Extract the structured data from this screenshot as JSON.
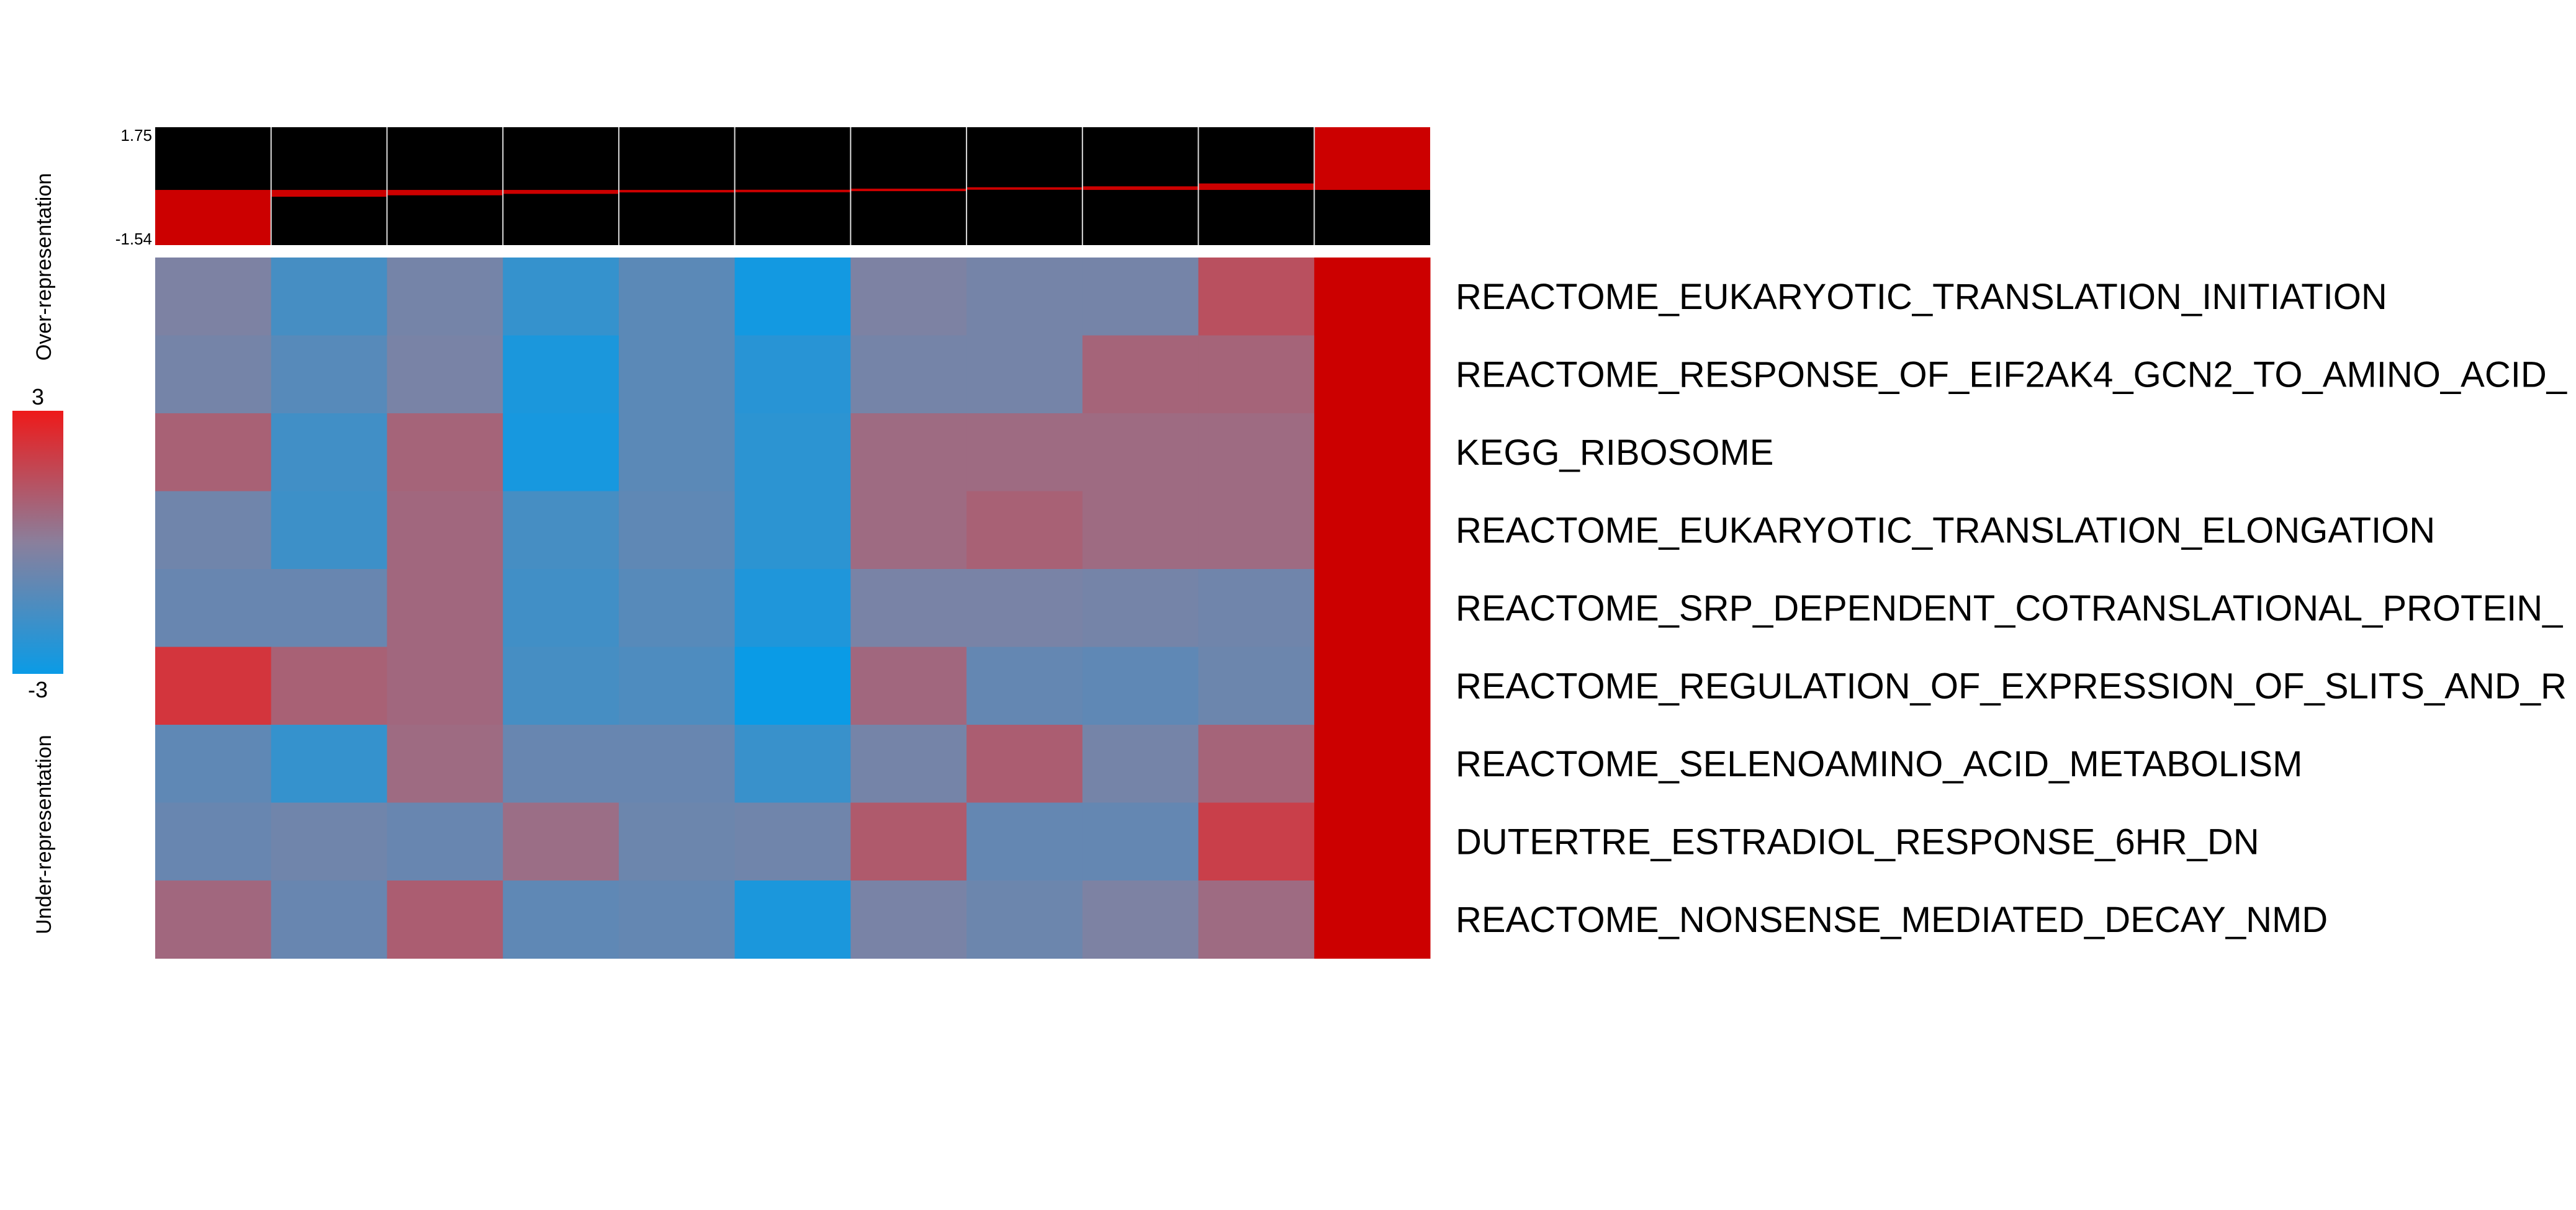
{
  "chart_data": {
    "type": "heatmap",
    "title": "",
    "top_bar": {
      "ymax_label": "1.75",
      "ymin_label": "-1.54",
      "ylim": [
        -1.54,
        1.75
      ],
      "values": [
        -1.54,
        -0.19,
        -0.15,
        -0.11,
        -0.07,
        -0.03,
        0.0,
        0.04,
        0.1,
        0.18,
        1.75
      ],
      "background_color": "#000000",
      "bar_color": "#cc0000"
    },
    "color_scale": {
      "max_label": "3",
      "min_label": "-3",
      "range": [
        -3,
        3
      ],
      "low_color": "#0a9be6",
      "mid_color": "#8a7f9c",
      "high_color": "#ee1a1a",
      "over_label": "Over-representation",
      "under_label": "Under-representation"
    },
    "rows": [
      "REACTOME_EUKARYOTIC_TRANSLATION_INITIATION",
      "REACTOME_RESPONSE_OF_EIF2AK4_GCN2_TO_AMINO_ACID_",
      "KEGG_RIBOSOME",
      "REACTOME_EUKARYOTIC_TRANSLATION_ELONGATION",
      "REACTOME_SRP_DEPENDENT_COTRANSLATIONAL_PROTEIN_",
      "REACTOME_REGULATION_OF_EXPRESSION_OF_SLITS_AND_R",
      "REACTOME_SELENOAMINO_ACID_METABOLISM",
      "DUTERTRE_ESTRADIOL_RESPONSE_6HR_DN",
      "REACTOME_NONSENSE_MEDIATED_DECAY_NMD"
    ],
    "n_columns": 11,
    "values": [
      [
        -0.3,
        -1.6,
        -0.5,
        -2.0,
        -1.1,
        -2.8,
        -0.3,
        -0.5,
        -0.5,
        1.4,
        3.0
      ],
      [
        -0.5,
        -1.2,
        -0.4,
        -2.6,
        -1.1,
        -2.3,
        -0.5,
        -0.5,
        0.8,
        0.8,
        3.0
      ],
      [
        0.9,
        -1.7,
        0.8,
        -2.7,
        -1.1,
        -2.2,
        0.6,
        0.6,
        0.6,
        0.6,
        3.0
      ],
      [
        -0.6,
        -1.8,
        0.7,
        -1.6,
        -1.0,
        -2.2,
        0.6,
        0.9,
        0.6,
        0.6,
        3.0
      ],
      [
        -0.8,
        -0.8,
        0.7,
        -1.7,
        -1.2,
        -2.5,
        -0.4,
        -0.4,
        -0.5,
        -0.6,
        3.0
      ],
      [
        2.2,
        0.9,
        0.7,
        -1.6,
        -1.4,
        -3.0,
        0.7,
        -0.9,
        -1.0,
        -0.7,
        3.0
      ],
      [
        -1.0,
        -2.0,
        0.6,
        -0.8,
        -0.8,
        -1.9,
        -0.5,
        1.0,
        -0.5,
        0.8,
        3.0
      ],
      [
        -0.8,
        -0.6,
        -0.8,
        0.5,
        -0.7,
        -0.6,
        1.1,
        -0.9,
        -0.9,
        1.9,
        3.0
      ],
      [
        0.7,
        -0.8,
        1.0,
        -1.0,
        -0.9,
        -2.6,
        -0.4,
        -0.7,
        -0.3,
        0.6,
        3.0
      ]
    ]
  }
}
